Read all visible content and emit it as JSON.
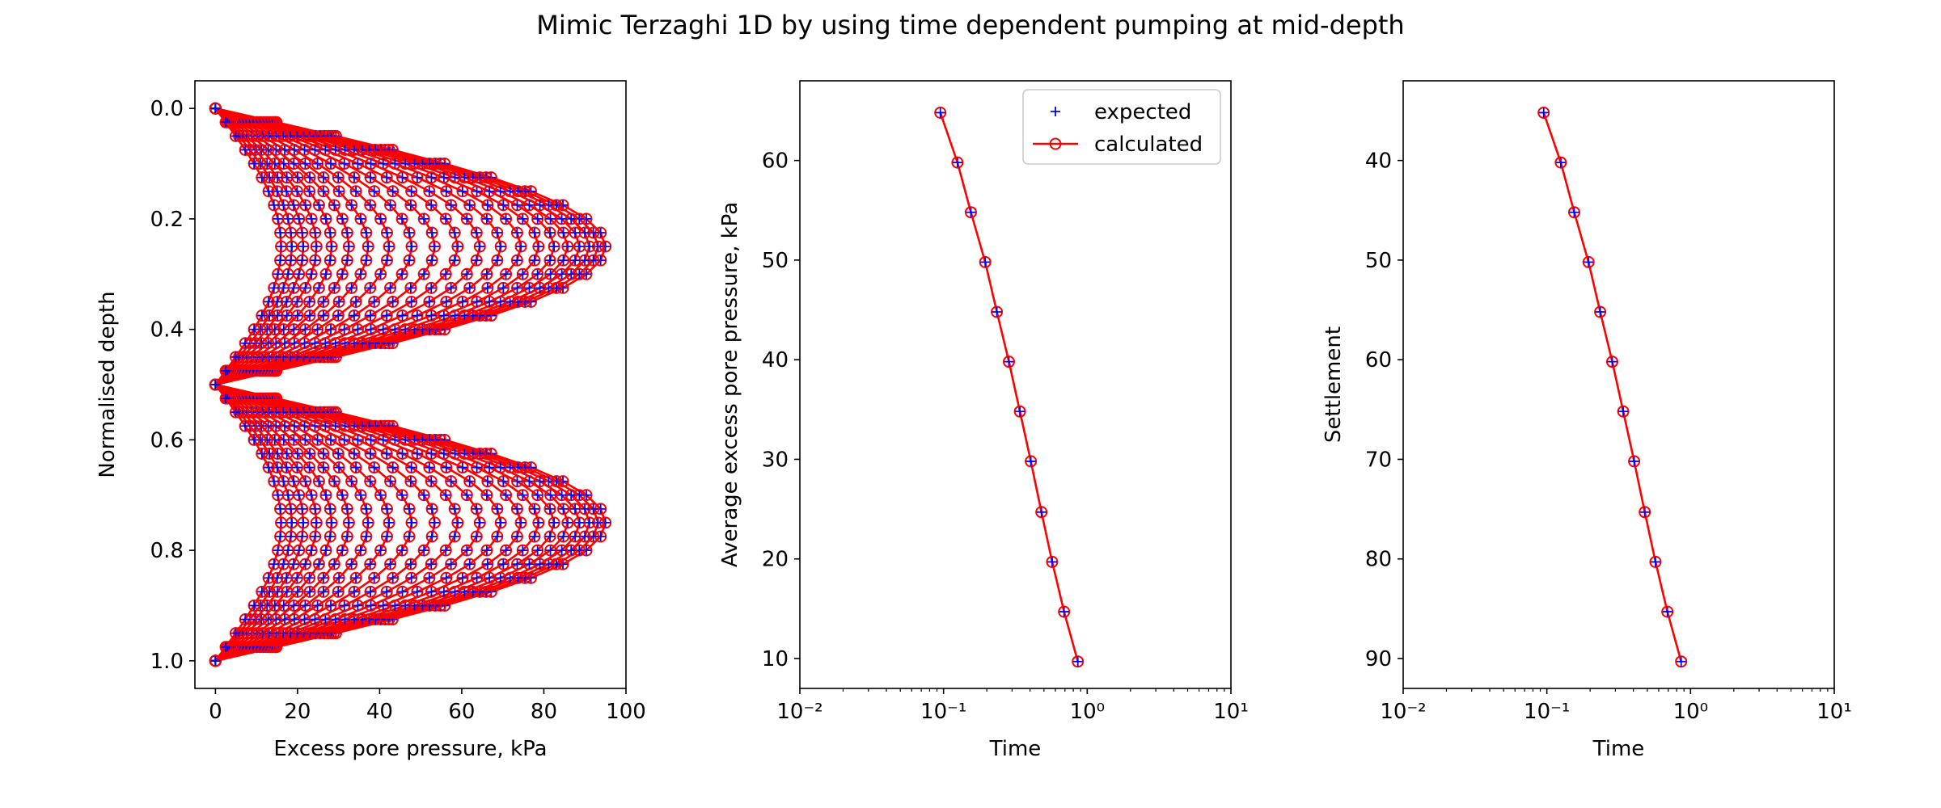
{
  "figure": {
    "title": "Mimic Terzaghi 1D by using time dependent pumping at mid-depth"
  },
  "colors": {
    "expected": "#0000ff",
    "calculated": "#ff0000",
    "axes": "#000000",
    "background": "#ffffff"
  },
  "chart_data": [
    {
      "type": "line",
      "xlabel": "Excess pore pressure, kPa",
      "ylabel": "Normalised depth",
      "xlim": [
        -5,
        100
      ],
      "ylim": [
        1.05,
        -0.05
      ],
      "yinverted": true,
      "xticks": [
        0,
        20,
        40,
        60,
        80,
        100
      ],
      "xtick_labels": [
        "0",
        "20",
        "40",
        "60",
        "80",
        "100"
      ],
      "yticks": [
        0.0,
        0.2,
        0.4,
        0.6,
        0.8,
        1.0
      ],
      "ytick_labels": [
        "0.0",
        "0.2",
        "0.4",
        "0.6",
        "0.8",
        "1.0"
      ],
      "depth": [
        0.0,
        0.025,
        0.05,
        0.075,
        0.1,
        0.125,
        0.15,
        0.175,
        0.2,
        0.225,
        0.25,
        0.275,
        0.3,
        0.325,
        0.35,
        0.375,
        0.4,
        0.425,
        0.45,
        0.475,
        0.5,
        0.525,
        0.55,
        0.575,
        0.6,
        0.625,
        0.65,
        0.675,
        0.7,
        0.725,
        0.75,
        0.775,
        0.8,
        0.825,
        0.85,
        0.875,
        0.9,
        0.925,
        0.95,
        0.975,
        1.0
      ],
      "peak_pressure": [
        95.0,
        93.2,
        91.1,
        88.7,
        85.8,
        82.5,
        78.7,
        74.4,
        69.5,
        64.4,
        59.0,
        53.4,
        47.8,
        42.3,
        37.2,
        32.5,
        28.3,
        24.6,
        21.4,
        18.6,
        16.0
      ],
      "profile_shape": "sin(pi*depth/0.5) on each half of the layer, zero at 0, 0.5 and 1.0",
      "series": [
        {
          "name": "expected",
          "marker": "+"
        },
        {
          "name": "calculated",
          "marker": "o",
          "line": "solid"
        }
      ]
    },
    {
      "type": "line",
      "xlabel": "Time",
      "ylabel": "Average excess pore pressure, kPa",
      "xscale": "log",
      "xlim": [
        0.01,
        10
      ],
      "ylim": [
        7,
        68
      ],
      "xticks": [
        0.01,
        0.1,
        1,
        10
      ],
      "xtick_labels": [
        "10⁻²",
        "10⁻¹",
        "10⁰",
        "10¹"
      ],
      "yticks": [
        10,
        20,
        30,
        40,
        50,
        60
      ],
      "ytick_labels": [
        "10",
        "20",
        "30",
        "40",
        "50",
        "60"
      ],
      "legend": "top-right",
      "x": [
        0.095,
        0.125,
        0.155,
        0.195,
        0.235,
        0.285,
        0.34,
        0.405,
        0.48,
        0.57,
        0.69,
        0.86
      ],
      "series": [
        {
          "name": "expected",
          "marker": "+",
          "values": [
            64.8,
            59.8,
            54.8,
            49.8,
            44.8,
            39.8,
            34.8,
            29.8,
            24.7,
            19.7,
            14.7,
            9.7
          ]
        },
        {
          "name": "calculated",
          "marker": "o",
          "line": "solid",
          "values": [
            64.8,
            59.8,
            54.8,
            49.8,
            44.8,
            39.8,
            34.8,
            29.8,
            24.7,
            19.7,
            14.7,
            9.7
          ]
        }
      ]
    },
    {
      "type": "line",
      "xlabel": "Time",
      "ylabel": "Settlement",
      "xscale": "log",
      "xlim": [
        0.01,
        10
      ],
      "ylim": [
        93,
        32
      ],
      "yinverted": true,
      "xticks": [
        0.01,
        0.1,
        1,
        10
      ],
      "xtick_labels": [
        "10⁻²",
        "10⁻¹",
        "10⁰",
        "10¹"
      ],
      "yticks": [
        40,
        50,
        60,
        70,
        80,
        90
      ],
      "ytick_labels": [
        "40",
        "50",
        "60",
        "70",
        "80",
        "90"
      ],
      "x": [
        0.095,
        0.125,
        0.155,
        0.195,
        0.235,
        0.285,
        0.34,
        0.405,
        0.48,
        0.57,
        0.69,
        0.86
      ],
      "series": [
        {
          "name": "expected",
          "marker": "+",
          "values": [
            35.2,
            40.2,
            45.2,
            50.2,
            55.2,
            60.2,
            65.2,
            70.2,
            75.3,
            80.3,
            85.3,
            90.3
          ]
        },
        {
          "name": "calculated",
          "marker": "o",
          "line": "solid",
          "values": [
            35.2,
            40.2,
            45.2,
            50.2,
            55.2,
            60.2,
            65.2,
            70.2,
            75.3,
            80.3,
            85.3,
            90.3
          ]
        }
      ]
    }
  ]
}
